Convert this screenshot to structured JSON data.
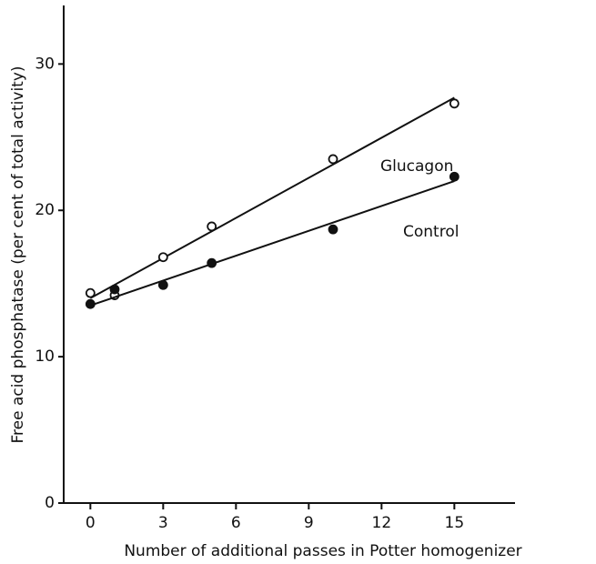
{
  "chart_data": {
    "type": "scatter",
    "xlabel": "Number of additional passes in Potter homogenizer",
    "ylabel": "Free acid phosphatase (per cent of total activity)",
    "xlim": [
      -1.1,
      17.5
    ],
    "xticks": [
      0,
      3,
      6,
      9,
      12,
      15
    ],
    "ylim": [
      0,
      34
    ],
    "yticks": [
      0,
      10,
      20,
      30
    ],
    "annotations": [
      "Glucagon",
      "Control"
    ],
    "series": [
      {
        "color": "#111111",
        "marker": "open",
        "x": [
          0,
          1,
          3,
          5,
          10,
          15
        ],
        "values": [
          14.35,
          14.2,
          16.8,
          18.9,
          23.5,
          27.3
        ],
        "fit": {
          "x": [
            0,
            15
          ],
          "values": [
            14.0,
            27.7
          ]
        }
      },
      {
        "color": "#111111",
        "marker": "filled",
        "x": [
          0,
          1,
          3,
          5,
          10,
          15
        ],
        "values": [
          13.6,
          14.6,
          14.9,
          16.4,
          18.7,
          22.3
        ],
        "fit": {
          "x": [
            0,
            15
          ],
          "values": [
            13.5,
            22.0
          ]
        }
      }
    ]
  }
}
